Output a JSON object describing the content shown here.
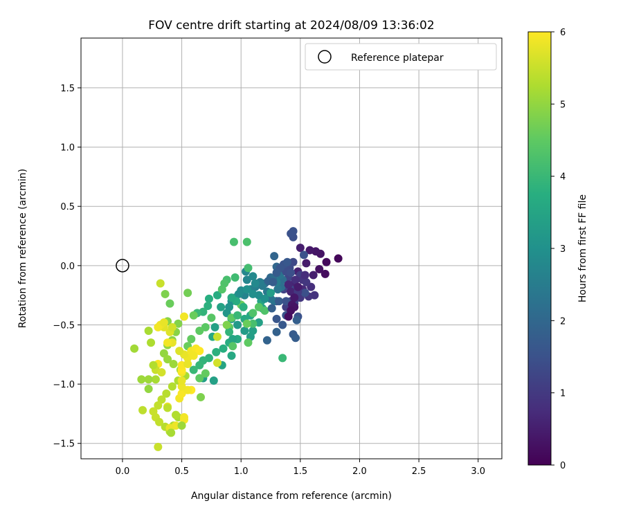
{
  "chart_data": {
    "type": "scatter",
    "title": "FOV centre drift starting at 2024/08/09 13:36:02",
    "xlabel": "Angular distance from reference (arcmin)",
    "ylabel": "Rotation from reference (arcmin)",
    "xlim": [
      -0.35,
      3.2
    ],
    "ylim": [
      -1.63,
      1.92
    ],
    "xticks": [
      0.0,
      0.5,
      1.0,
      1.5,
      2.0,
      2.5,
      3.0
    ],
    "xtick_labels": [
      "0.0",
      "0.5",
      "1.0",
      "1.5",
      "2.0",
      "2.5",
      "3.0"
    ],
    "yticks": [
      -1.5,
      -1.0,
      -0.5,
      0.0,
      0.5,
      1.0,
      1.5
    ],
    "ytick_labels": [
      "−1.5",
      "−1.0",
      "−0.5",
      "0.0",
      "0.5",
      "1.0",
      "1.5"
    ],
    "grid": true,
    "legend": {
      "placement": "top-right",
      "entries": [
        "Reference platepar"
      ]
    },
    "reference_point": {
      "x": 0.0,
      "y": 0.0,
      "marker": "open-circle"
    },
    "colorbar": {
      "label": "Hours from first FF file",
      "colormap": "viridis",
      "range": [
        0,
        6
      ],
      "ticks": [
        0,
        1,
        2,
        3,
        4,
        5,
        6
      ],
      "tick_labels": [
        "0",
        "1",
        "2",
        "3",
        "4",
        "5",
        "6"
      ]
    },
    "points": [
      [
        1.82,
        0.06,
        0.1
      ],
      [
        1.72,
        0.03,
        0.15
      ],
      [
        1.71,
        -0.07,
        0.2
      ],
      [
        1.66,
        -0.03,
        0.25
      ],
      [
        1.67,
        0.1,
        0.3
      ],
      [
        1.63,
        0.12,
        0.35
      ],
      [
        1.58,
        0.13,
        0.4
      ],
      [
        1.55,
        0.02,
        0.45
      ],
      [
        1.5,
        0.15,
        0.5
      ],
      [
        1.48,
        -0.05,
        0.55
      ],
      [
        1.45,
        -0.15,
        0.6
      ],
      [
        1.52,
        -0.2,
        0.7
      ],
      [
        1.59,
        -0.18,
        0.8
      ],
      [
        1.62,
        -0.25,
        0.85
      ],
      [
        1.57,
        -0.26,
        0.9
      ],
      [
        1.5,
        -0.27,
        0.95
      ],
      [
        1.46,
        -0.28,
        1.0
      ],
      [
        1.42,
        -0.3,
        1.05
      ],
      [
        1.38,
        -0.35,
        1.1
      ],
      [
        1.3,
        -0.3,
        1.15
      ],
      [
        1.36,
        -0.2,
        1.2
      ],
      [
        1.4,
        -0.1,
        1.25
      ],
      [
        1.44,
        0.03,
        1.3
      ],
      [
        1.41,
        -0.02,
        1.35
      ],
      [
        1.38,
        0.0,
        1.4
      ],
      [
        1.44,
        0.24,
        1.45
      ],
      [
        1.42,
        0.27,
        1.5
      ],
      [
        1.44,
        0.29,
        1.5
      ],
      [
        1.53,
        0.09,
        1.5
      ],
      [
        1.54,
        -0.23,
        1.45
      ],
      [
        1.48,
        -0.43,
        1.5
      ],
      [
        1.38,
        -0.42,
        1.55
      ],
      [
        1.3,
        -0.45,
        1.6
      ],
      [
        1.35,
        -0.5,
        1.65
      ],
      [
        1.44,
        -0.58,
        1.7
      ],
      [
        1.46,
        -0.61,
        1.75
      ],
      [
        1.47,
        -0.46,
        1.8
      ],
      [
        1.3,
        -0.56,
        1.85
      ],
      [
        1.22,
        -0.63,
        1.9
      ],
      [
        1.28,
        0.08,
        1.95
      ],
      [
        1.3,
        -0.01,
        2.0
      ],
      [
        1.25,
        -0.1,
        2.05
      ],
      [
        1.2,
        -0.15,
        2.1
      ],
      [
        1.35,
        -0.12,
        2.15
      ],
      [
        1.34,
        -0.18,
        2.2
      ],
      [
        1.25,
        -0.28,
        2.25
      ],
      [
        1.28,
        -0.3,
        2.3
      ],
      [
        1.31,
        -0.2,
        2.35
      ],
      [
        1.22,
        -0.22,
        2.4
      ],
      [
        1.18,
        -0.17,
        2.45
      ],
      [
        1.16,
        -0.14,
        2.5
      ],
      [
        1.12,
        -0.18,
        2.55
      ],
      [
        1.08,
        -0.2,
        2.6
      ],
      [
        1.03,
        -0.25,
        2.65
      ],
      [
        1.05,
        -0.12,
        2.7
      ],
      [
        1.04,
        -0.05,
        2.75
      ],
      [
        1.1,
        -0.09,
        2.8
      ],
      [
        1.0,
        -0.21,
        2.85
      ],
      [
        0.98,
        -0.24,
        2.9
      ],
      [
        0.95,
        -0.27,
        2.95
      ],
      [
        0.92,
        -0.3,
        3.0
      ],
      [
        0.9,
        -0.35,
        3.05
      ],
      [
        0.88,
        -0.4,
        3.1
      ],
      [
        0.92,
        -0.45,
        3.15
      ],
      [
        0.97,
        -0.5,
        3.2
      ],
      [
        1.03,
        -0.55,
        3.25
      ],
      [
        1.08,
        -0.6,
        3.3
      ],
      [
        1.1,
        -0.55,
        3.35
      ],
      [
        1.15,
        -0.48,
        3.4
      ],
      [
        1.18,
        -0.36,
        3.45
      ],
      [
        1.17,
        -0.3,
        3.5
      ],
      [
        1.08,
        -0.42,
        3.55
      ],
      [
        1.03,
        -0.45,
        3.6
      ],
      [
        0.97,
        -0.62,
        3.65
      ],
      [
        0.9,
        -0.65,
        3.7
      ],
      [
        0.85,
        -0.7,
        3.75
      ],
      [
        0.79,
        -0.73,
        3.8
      ],
      [
        0.73,
        -0.78,
        3.85
      ],
      [
        0.68,
        -0.8,
        3.9
      ],
      [
        0.65,
        -0.84,
        3.95
      ],
      [
        0.6,
        -0.88,
        4.0
      ],
      [
        0.84,
        -0.84,
        3.5
      ],
      [
        0.92,
        -0.76,
        3.6
      ],
      [
        0.78,
        -0.52,
        3.4
      ],
      [
        0.76,
        -0.6,
        3.6
      ],
      [
        0.83,
        -0.35,
        3.45
      ],
      [
        0.8,
        -0.25,
        3.7
      ],
      [
        0.73,
        -0.28,
        3.75
      ],
      [
        0.72,
        -0.34,
        3.8
      ],
      [
        0.68,
        -0.39,
        3.9
      ],
      [
        0.63,
        -0.4,
        4.0
      ],
      [
        0.68,
        -0.95,
        3.3
      ],
      [
        0.77,
        -0.97,
        3.4
      ],
      [
        0.93,
        -0.62,
        3.5
      ],
      [
        0.94,
        0.2,
        4.2
      ],
      [
        1.05,
        0.2,
        4.25
      ],
      [
        1.06,
        -0.02,
        4.15
      ],
      [
        0.95,
        -0.1,
        4.1
      ],
      [
        0.88,
        -0.12,
        4.2
      ],
      [
        0.86,
        -0.15,
        4.3
      ],
      [
        0.84,
        -0.2,
        4.35
      ],
      [
        0.75,
        -0.44,
        4.4
      ],
      [
        0.7,
        -0.52,
        4.45
      ],
      [
        0.65,
        -0.55,
        4.5
      ],
      [
        0.58,
        -0.62,
        4.55
      ],
      [
        0.55,
        -0.68,
        4.6
      ],
      [
        0.65,
        -0.95,
        4.5
      ],
      [
        0.7,
        -0.91,
        4.55
      ],
      [
        0.6,
        -0.42,
        4.6
      ],
      [
        0.55,
        -0.23,
        4.7
      ],
      [
        0.4,
        -0.32,
        4.6
      ],
      [
        0.36,
        -0.24,
        4.8
      ],
      [
        0.38,
        -0.47,
        4.9
      ],
      [
        0.47,
        -0.49,
        4.85
      ],
      [
        0.45,
        -0.56,
        4.9
      ],
      [
        0.42,
        -0.63,
        4.95
      ],
      [
        0.38,
        -0.67,
        5.0
      ],
      [
        0.35,
        -0.74,
        5.0
      ],
      [
        0.38,
        -0.79,
        5.05
      ],
      [
        0.43,
        -0.83,
        5.1
      ],
      [
        0.49,
        -0.88,
        5.15
      ],
      [
        0.53,
        -0.93,
        5.2
      ],
      [
        0.47,
        -0.97,
        5.25
      ],
      [
        0.42,
        -1.02,
        5.3
      ],
      [
        0.37,
        -1.08,
        5.35
      ],
      [
        0.33,
        -1.13,
        5.4
      ],
      [
        0.3,
        -1.18,
        5.45
      ],
      [
        0.26,
        -1.23,
        5.5
      ],
      [
        0.28,
        -1.28,
        5.5
      ],
      [
        0.31,
        -1.32,
        5.45
      ],
      [
        0.36,
        -1.36,
        5.35
      ],
      [
        0.4,
        -1.4,
        5.3
      ],
      [
        0.43,
        -1.35,
        5.25
      ],
      [
        0.47,
        -1.28,
        5.2
      ],
      [
        0.52,
        -1.3,
        5.95
      ],
      [
        0.52,
        -1.28,
        5.9
      ],
      [
        0.45,
        -1.35,
        5.85
      ],
      [
        0.4,
        -1.37,
        5.8
      ],
      [
        0.38,
        -1.19,
        5.85
      ],
      [
        0.48,
        -1.12,
        5.9
      ],
      [
        0.5,
        -1.08,
        5.95
      ],
      [
        0.58,
        -1.05,
        6.0
      ],
      [
        0.55,
        -1.05,
        5.9
      ],
      [
        0.5,
        -1.02,
        5.85
      ],
      [
        0.5,
        -0.97,
        5.8
      ],
      [
        0.5,
        -0.9,
        5.9
      ],
      [
        0.5,
        -0.88,
        6.0
      ],
      [
        0.5,
        -0.84,
        5.95
      ],
      [
        0.55,
        -0.78,
        5.85
      ],
      [
        0.52,
        -0.75,
        5.8
      ],
      [
        0.58,
        -0.72,
        5.9
      ],
      [
        0.62,
        -0.7,
        5.95
      ],
      [
        0.65,
        -0.72,
        6.0
      ],
      [
        0.6,
        -0.76,
        5.9
      ],
      [
        0.55,
        -0.83,
        5.8
      ],
      [
        0.48,
        -0.72,
        5.7
      ],
      [
        0.42,
        -0.65,
        5.8
      ],
      [
        0.38,
        -0.65,
        5.9
      ],
      [
        0.4,
        -0.56,
        5.7
      ],
      [
        0.42,
        -0.52,
        5.6
      ],
      [
        0.35,
        -0.52,
        5.75
      ],
      [
        0.32,
        -0.5,
        5.85
      ],
      [
        0.3,
        -0.52,
        5.9
      ],
      [
        0.35,
        -0.48,
        5.8
      ],
      [
        0.52,
        -0.43,
        5.9
      ],
      [
        0.32,
        -0.15,
        5.5
      ],
      [
        0.3,
        -0.83,
        5.95
      ],
      [
        0.28,
        -0.88,
        5.5
      ],
      [
        0.33,
        -0.9,
        5.6
      ],
      [
        0.28,
        -0.96,
        5.2
      ],
      [
        0.22,
        -0.96,
        5.1
      ],
      [
        0.22,
        -1.04,
        5.0
      ],
      [
        0.16,
        -0.96,
        5.1
      ],
      [
        0.1,
        -0.7,
        5.15
      ],
      [
        0.22,
        -0.55,
        5.2
      ],
      [
        0.24,
        -0.65,
        5.25
      ],
      [
        0.26,
        -0.84,
        5.3
      ],
      [
        0.17,
        -1.22,
        5.4
      ],
      [
        0.3,
        -1.53,
        5.5
      ],
      [
        0.41,
        -1.41,
        5.2
      ],
      [
        0.45,
        -1.26,
        5.3
      ],
      [
        0.38,
        -1.2,
        5.4
      ],
      [
        0.8,
        -0.6,
        5.5
      ],
      [
        0.8,
        -0.82,
        5.6
      ],
      [
        0.93,
        -0.68,
        4.4
      ],
      [
        1.06,
        -0.65,
        4.5
      ],
      [
        1.0,
        -0.33,
        4.6
      ],
      [
        0.92,
        -0.44,
        4.5
      ],
      [
        1.1,
        -0.4,
        4.3
      ],
      [
        1.15,
        -0.35,
        4.4
      ],
      [
        1.2,
        -0.38,
        4.3
      ],
      [
        1.35,
        -0.78,
        4.0
      ],
      [
        1.1,
        -0.49,
        4.2
      ],
      [
        0.9,
        -0.52,
        4.5
      ],
      [
        1.05,
        -0.49,
        4.6
      ],
      [
        0.97,
        -0.42,
        4.0
      ],
      [
        0.9,
        -0.56,
        3.9
      ],
      [
        1.02,
        -0.35,
        3.8
      ],
      [
        0.96,
        -0.3,
        3.7
      ],
      [
        0.92,
        -0.27,
        3.6
      ],
      [
        1.25,
        -0.23,
        3.3
      ],
      [
        1.2,
        -0.28,
        3.0
      ],
      [
        1.15,
        -0.25,
        2.9
      ],
      [
        1.1,
        -0.24,
        2.95
      ],
      [
        1.05,
        -0.2,
        3.0
      ],
      [
        1.12,
        -0.15,
        2.8
      ],
      [
        1.3,
        -0.14,
        2.5
      ],
      [
        1.33,
        -0.08,
        2.3
      ],
      [
        1.27,
        -0.11,
        2.1
      ],
      [
        1.23,
        -0.13,
        1.9
      ],
      [
        1.26,
        -0.36,
        1.8
      ],
      [
        1.32,
        -0.3,
        1.7
      ],
      [
        1.38,
        -0.3,
        1.5
      ],
      [
        1.42,
        -0.2,
        1.3
      ],
      [
        1.45,
        -0.32,
        1.2
      ],
      [
        1.5,
        -0.08,
        1.1
      ],
      [
        1.52,
        -0.12,
        0.9
      ],
      [
        1.46,
        -0.12,
        0.8
      ],
      [
        1.4,
        -0.16,
        0.65
      ],
      [
        1.42,
        -0.22,
        0.6
      ],
      [
        1.55,
        -0.14,
        0.95
      ],
      [
        1.48,
        -0.22,
        1.0
      ],
      [
        1.54,
        -0.08,
        0.75
      ],
      [
        1.61,
        -0.08,
        0.5
      ],
      [
        1.48,
        -0.18,
        0.45
      ],
      [
        1.45,
        -0.27,
        0.4
      ],
      [
        1.43,
        -0.33,
        0.35
      ],
      [
        1.45,
        -0.35,
        0.3
      ],
      [
        1.42,
        -0.38,
        0.25
      ],
      [
        1.4,
        -0.43,
        0.2
      ],
      [
        1.38,
        -0.05,
        1.4
      ],
      [
        1.42,
        -0.06,
        1.45
      ],
      [
        1.36,
        0.01,
        1.55
      ],
      [
        1.33,
        -0.02,
        1.6
      ],
      [
        1.39,
        0.03,
        1.65
      ],
      [
        1.3,
        -0.06,
        1.7
      ],
      [
        1.27,
        -0.14,
        1.75
      ],
      [
        0.88,
        -0.5,
        4.8
      ],
      [
        0.66,
        -1.11,
        4.8
      ],
      [
        0.5,
        -1.35,
        5.1
      ]
    ]
  }
}
